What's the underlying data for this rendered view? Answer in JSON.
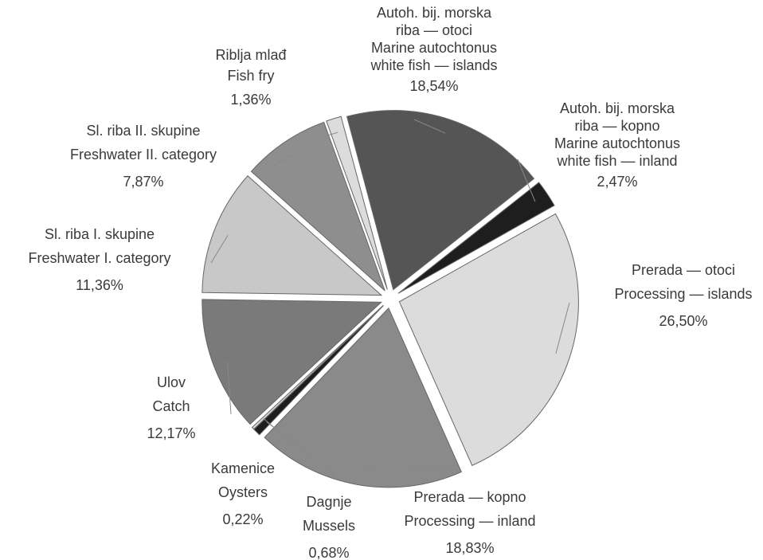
{
  "chart_data": {
    "type": "pie",
    "categories": [
      [
        "Autoh. bij. morska",
        "riba — otoci",
        "Marine autochtonus",
        "white fish — islands"
      ],
      [
        "Autoh. bij. morska",
        "riba — kopno",
        "Marine autochtonus",
        "white fish — inland"
      ],
      [
        "Prerada — otoci",
        "Processing — islands"
      ],
      [
        "Prerada — kopno",
        "Processing — inland"
      ],
      [
        "Dagnje",
        "Mussels"
      ],
      [
        "Kamenice",
        "Oysters"
      ],
      [
        "Ulov",
        "Catch"
      ],
      [
        "Sl. riba I. skupine",
        "Freshwater I. category"
      ],
      [
        "Sl. riba II. skupine",
        "Freshwater II. category"
      ],
      [
        "Riblja mlađ",
        "Fish fry"
      ]
    ],
    "values": [
      18.54,
      2.47,
      26.5,
      18.83,
      0.68,
      0.22,
      12.17,
      11.36,
      7.87,
      1.36
    ],
    "value_labels": [
      "18,54%",
      "2,47%",
      "26,50%",
      "18,83%",
      "0,68%",
      "0,22%",
      "12,17%",
      "11,36%",
      "7,87%",
      "1,36%"
    ],
    "colors": [
      "#555555",
      "#1e1e1e",
      "#dcdcdc",
      "#8a8a8a",
      "#1e1e1e",
      "#d8d8d8",
      "#7a7a7a",
      "#c8c8c8",
      "#8e8e8e",
      "#dcdcdc"
    ]
  }
}
